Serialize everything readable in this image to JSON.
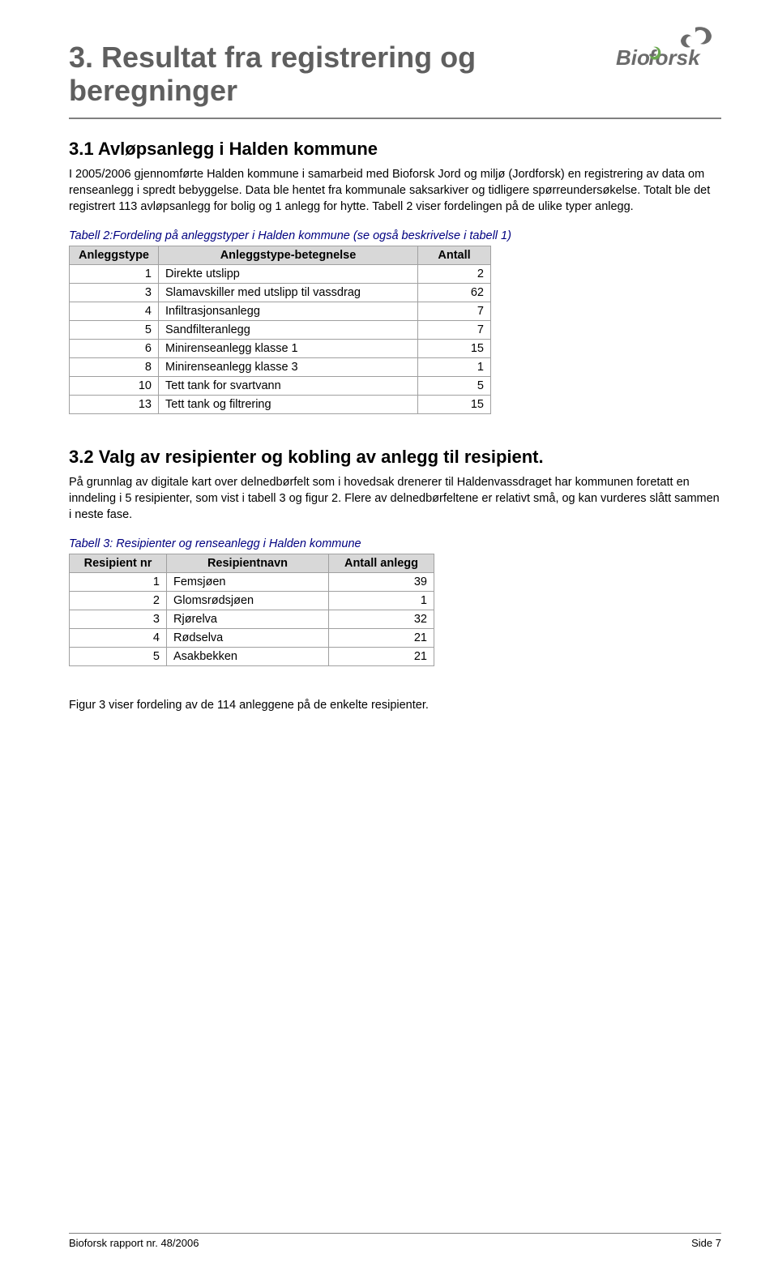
{
  "logo": {
    "text": "Bioforsk",
    "color": "#6b6b6b",
    "leaf_color": "#6aa84f"
  },
  "title": "3. Resultat fra registrering og beregninger",
  "section_3_1": {
    "heading": "3.1  Avløpsanlegg i Halden kommune",
    "para": "I 2005/2006 gjennomførte Halden kommune i samarbeid med Bioforsk Jord og miljø (Jordforsk) en registrering av data om renseanlegg i spredt bebyggelse. Data ble hentet fra kommunale saksarkiver og tidligere spørreundersøkelse. Totalt ble det registrert 113 avløpsanlegg for bolig og 1 anlegg for hytte. Tabell 2 viser fordelingen på de ulike typer anlegg."
  },
  "table2": {
    "caption": "Tabell 2:Fordeling på anleggstyper i Halden kommune (se også beskrivelse i tabell 1)",
    "columns": [
      "Anleggstype",
      "Anleggstype-betegnelse",
      "Antall"
    ],
    "rows": [
      [
        "1",
        "Direkte utslipp",
        "2"
      ],
      [
        "3",
        "Slamavskiller med utslipp til vassdrag",
        "62"
      ],
      [
        "4",
        "Infiltrasjonsanlegg",
        "7"
      ],
      [
        "5",
        "Sandfilteranlegg",
        "7"
      ],
      [
        "6",
        "Minirenseanlegg klasse 1",
        "15"
      ],
      [
        "8",
        "Minirenseanlegg klasse 3",
        "1"
      ],
      [
        "10",
        "Tett tank for svartvann",
        "5"
      ],
      [
        "13",
        "Tett tank og filtrering",
        "15"
      ]
    ]
  },
  "section_3_2": {
    "heading": "3.2  Valg av resipienter og kobling av anlegg til resipient.",
    "para": "På grunnlag av digitale kart over delnedbørfelt som i hovedsak drenerer til Haldenvassdraget har kommunen foretatt en inndeling i 5 resipienter, som vist i tabell 3 og figur 2. Flere av delnedbørfeltene er relativt små, og kan vurderes slått sammen i neste fase."
  },
  "table3": {
    "caption": "Tabell 3:  Resipienter og renseanlegg i Halden kommune",
    "columns": [
      "Resipient nr",
      "Resipientnavn",
      "Antall anlegg"
    ],
    "rows": [
      [
        "1",
        "Femsjøen",
        "39"
      ],
      [
        "2",
        "Glomsrødsjøen",
        "1"
      ],
      [
        "3",
        "Rjørelva",
        "32"
      ],
      [
        "4",
        "Rødselva",
        "21"
      ],
      [
        "5",
        "Asakbekken",
        "21"
      ]
    ]
  },
  "fig_ref": "Figur 3 viser fordeling av de 114 anleggene på de enkelte resipienter.",
  "footer": {
    "left": "Bioforsk rapport nr. 48/2006",
    "right": "Side 7"
  }
}
